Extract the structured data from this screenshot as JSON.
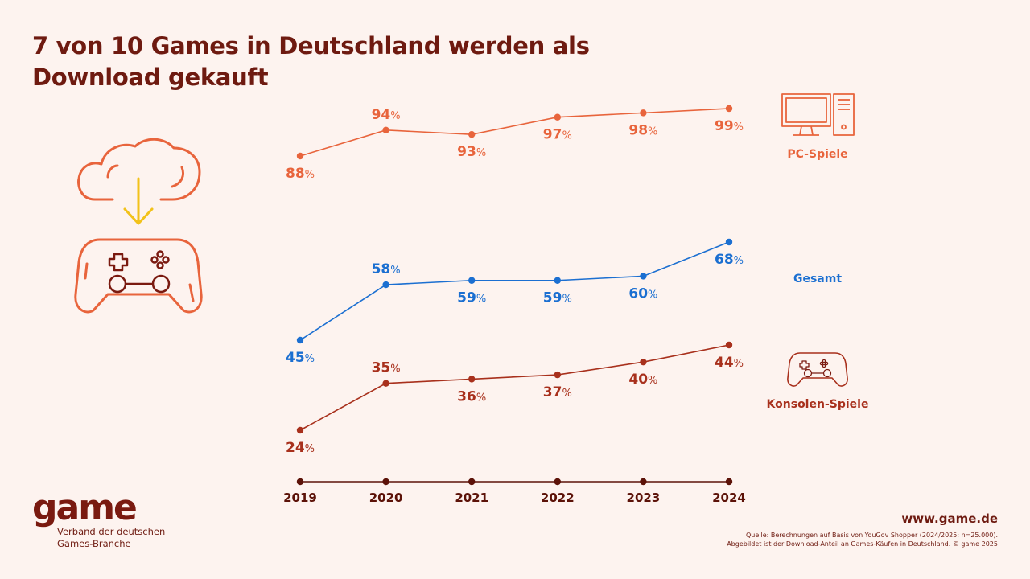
{
  "title": "7 von 10 Games in Deutschland werden als Download gekauft",
  "brand": {
    "logo": "game",
    "subtitle_line1": "Verband der deutschen",
    "subtitle_line2": "Games-Branche"
  },
  "website": "www.game.de",
  "source_line1": "Quelle: Berechnungen auf Basis von YouGov Shopper (2024/2025; n=25.000).",
  "source_line2": "Abgebildet ist der Download-Anteil an Games-Käufen in Deutschland. © game 2025",
  "colors": {
    "pc": "#e8643c",
    "gesamt": "#1b6fd1",
    "konsole": "#a8301c",
    "axis": "#5c1208",
    "arrow": "#f2c21a"
  },
  "icons": [
    "cloud-download-icon",
    "gamepad-icon",
    "pc-icon",
    "small-gamepad-icon"
  ],
  "chart_data": {
    "type": "line",
    "x": [
      "2019",
      "2020",
      "2021",
      "2022",
      "2023",
      "2024"
    ],
    "unit": "%",
    "series": [
      {
        "name": "PC-Spiele",
        "values": [
          88,
          94,
          93,
          97,
          98,
          99
        ],
        "color": "#e8643c",
        "labels_pos": [
          "below",
          "above",
          "below",
          "below",
          "below",
          "below"
        ]
      },
      {
        "name": "Gesamt",
        "values": [
          45,
          58,
          59,
          59,
          60,
          68
        ],
        "color": "#1b6fd1",
        "labels_pos": [
          "below",
          "above",
          "below",
          "below",
          "below",
          "below"
        ]
      },
      {
        "name": "Konsolen-Spiele",
        "values": [
          24,
          35,
          36,
          37,
          40,
          44
        ],
        "color": "#a8301c",
        "labels_pos": [
          "below",
          "above",
          "below",
          "below",
          "below",
          "below"
        ]
      }
    ]
  }
}
